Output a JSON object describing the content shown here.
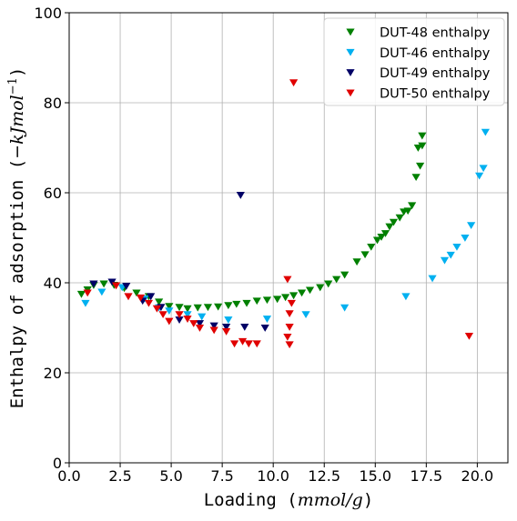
{
  "chart_data": {
    "type": "scatter",
    "xlabel": "Loading ($mmol/g$)",
    "ylabel": "Enthalpy of adsorption ($-kJ mol^{-1}$)",
    "xlim": [
      0,
      21.5
    ],
    "ylim": [
      0,
      100
    ],
    "xticks": [
      "0.0",
      "2.5",
      "5.0",
      "7.5",
      "10.0",
      "12.5",
      "15.0",
      "17.5",
      "20.0"
    ],
    "yticks": [
      "0",
      "20",
      "40",
      "60",
      "80",
      "100"
    ],
    "grid": true,
    "legend_position": "top-right",
    "marker": "triangle-down",
    "series": [
      {
        "name": "DUT-48 enthalpy",
        "color": "#008000",
        "points": [
          [
            0.6,
            37.5
          ],
          [
            0.9,
            38.5
          ],
          [
            1.2,
            39.5
          ],
          [
            1.7,
            39.8
          ],
          [
            2.2,
            39.5
          ],
          [
            2.7,
            38.8
          ],
          [
            3.3,
            37.8
          ],
          [
            3.9,
            37.0
          ],
          [
            4.4,
            35.8
          ],
          [
            4.9,
            34.8
          ],
          [
            5.4,
            34.6
          ],
          [
            5.8,
            34.3
          ],
          [
            6.3,
            34.5
          ],
          [
            6.8,
            34.6
          ],
          [
            7.3,
            34.7
          ],
          [
            7.8,
            35.0
          ],
          [
            8.2,
            35.3
          ],
          [
            8.7,
            35.5
          ],
          [
            9.2,
            36.0
          ],
          [
            9.7,
            36.2
          ],
          [
            10.2,
            36.4
          ],
          [
            10.6,
            36.8
          ],
          [
            11.0,
            37.2
          ],
          [
            11.4,
            37.8
          ],
          [
            11.8,
            38.4
          ],
          [
            12.3,
            39.0
          ],
          [
            12.7,
            39.8
          ],
          [
            13.1,
            40.8
          ],
          [
            13.5,
            41.8
          ],
          [
            14.1,
            44.7
          ],
          [
            14.5,
            46.3
          ],
          [
            14.8,
            48.0
          ],
          [
            15.1,
            49.5
          ],
          [
            15.3,
            50.2
          ],
          [
            15.5,
            51.0
          ],
          [
            15.7,
            52.5
          ],
          [
            15.9,
            53.5
          ],
          [
            16.2,
            54.5
          ],
          [
            16.4,
            55.8
          ],
          [
            16.6,
            56.0
          ],
          [
            16.8,
            57.2
          ],
          [
            17.0,
            63.5
          ],
          [
            17.1,
            70.0
          ],
          [
            17.3,
            70.5
          ],
          [
            17.2,
            66.0
          ],
          [
            17.3,
            72.7
          ]
        ]
      },
      {
        "name": "DUT-46 enthalpy",
        "color": "#00B0F0",
        "points": [
          [
            0.8,
            35.5
          ],
          [
            1.6,
            38.0
          ],
          [
            2.6,
            39.0
          ],
          [
            3.7,
            36.5
          ],
          [
            4.4,
            34.5
          ],
          [
            4.9,
            33.8
          ],
          [
            5.8,
            33.0
          ],
          [
            6.5,
            32.5
          ],
          [
            7.8,
            31.8
          ],
          [
            9.7,
            32.0
          ],
          [
            11.6,
            33.0
          ],
          [
            13.5,
            34.5
          ],
          [
            16.5,
            37.0
          ],
          [
            17.8,
            41.0
          ],
          [
            18.4,
            45.0
          ],
          [
            18.7,
            46.2
          ],
          [
            19.0,
            48.0
          ],
          [
            19.4,
            50.0
          ],
          [
            19.7,
            52.8
          ],
          [
            20.1,
            63.8
          ],
          [
            20.3,
            65.5
          ],
          [
            20.4,
            73.5
          ]
        ]
      },
      {
        "name": "DUT-49 enthalpy",
        "color": "#000066",
        "points": [
          [
            1.2,
            39.8
          ],
          [
            2.1,
            40.2
          ],
          [
            2.8,
            39.3
          ],
          [
            3.6,
            36.0
          ],
          [
            4.0,
            37.0
          ],
          [
            4.5,
            34.6
          ],
          [
            5.4,
            31.8
          ],
          [
            6.4,
            31.0
          ],
          [
            7.1,
            30.5
          ],
          [
            7.7,
            30.2
          ],
          [
            8.4,
            59.5
          ],
          [
            8.6,
            30.2
          ],
          [
            9.6,
            30.0
          ]
        ]
      },
      {
        "name": "DUT-50 enthalpy",
        "color": "#E00000",
        "points": [
          [
            0.9,
            37.8
          ],
          [
            2.3,
            39.4
          ],
          [
            2.9,
            37.0
          ],
          [
            3.5,
            36.7
          ],
          [
            3.9,
            35.5
          ],
          [
            4.3,
            34.3
          ],
          [
            4.6,
            33.0
          ],
          [
            4.9,
            31.5
          ],
          [
            5.4,
            33.0
          ],
          [
            5.8,
            32.0
          ],
          [
            6.1,
            31.0
          ],
          [
            6.4,
            30.0
          ],
          [
            7.1,
            29.5
          ],
          [
            7.7,
            29.2
          ],
          [
            8.1,
            26.5
          ],
          [
            8.5,
            27.0
          ],
          [
            8.8,
            26.5
          ],
          [
            9.2,
            26.5
          ],
          [
            10.7,
            40.8
          ],
          [
            10.8,
            33.2
          ],
          [
            10.8,
            30.2
          ],
          [
            10.7,
            28.0
          ],
          [
            10.8,
            26.3
          ],
          [
            10.9,
            35.5
          ],
          [
            11.0,
            84.5
          ],
          [
            19.6,
            28.2
          ]
        ]
      }
    ]
  }
}
